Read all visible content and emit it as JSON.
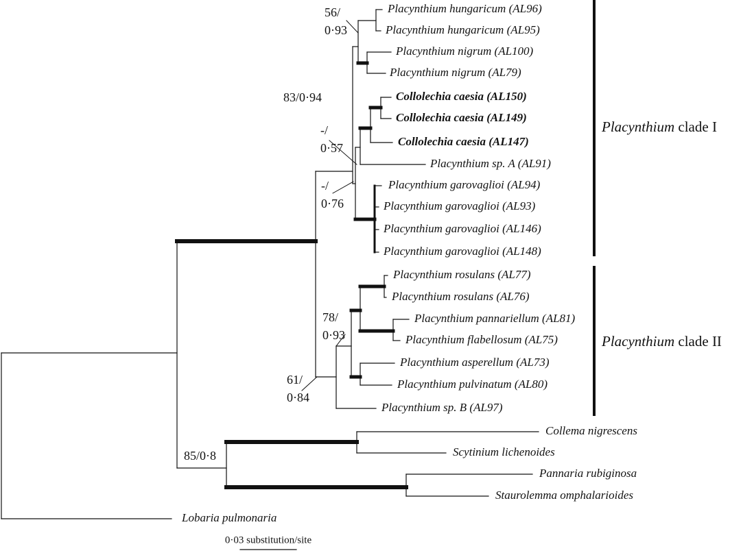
{
  "taxa": [
    {
      "label": "Placynthium hungaricum (AL96)"
    },
    {
      "label": "Placynthium hungaricum (AL95)"
    },
    {
      "label": "Placynthium nigrum (AL100)"
    },
    {
      "label": "Placynthium nigrum (AL79)"
    },
    {
      "label": "Collolechia caesia (AL150)",
      "bold": true
    },
    {
      "label": "Collolechia caesia (AL149)",
      "bold": true
    },
    {
      "label": "Collolechia caesia (AL147)",
      "bold": true
    },
    {
      "label": "Placynthium sp. A (AL91)"
    },
    {
      "label": "Placynthium garovaglioi (AL94)"
    },
    {
      "label": "Placynthium garovaglioi (AL93)"
    },
    {
      "label": "Placynthium garovaglioi (AL146)"
    },
    {
      "label": "Placynthium garovaglioi (AL148)"
    },
    {
      "label": "Placynthium rosulans (AL77)"
    },
    {
      "label": "Placynthium rosulans (AL76)"
    },
    {
      "label": "Placynthium pannariellum (AL81)"
    },
    {
      "label": "Placynthium flabellosum (AL75)"
    },
    {
      "label": "Placynthium asperellum (AL73)"
    },
    {
      "label": "Placynthium pulvinatum (AL80)"
    },
    {
      "label": "Placynthium sp. B (AL97)"
    },
    {
      "label": "Collema nigrescens"
    },
    {
      "label": "Scytinium lichenoides"
    },
    {
      "label": "Pannaria rubiginosa"
    },
    {
      "label": "Staurolemma omphalarioides"
    },
    {
      "label": "Lobaria pulmonaria"
    }
  ],
  "support": [
    [
      "56/",
      "0·93"
    ],
    [
      "83/0·94"
    ],
    [
      "-/",
      "0·57"
    ],
    [
      "-/",
      "0·76"
    ],
    [
      "78/",
      "0·93"
    ],
    [
      "61/",
      "0·84"
    ],
    [
      "85/0·8"
    ]
  ],
  "clades": [
    {
      "genus": "Placynthium",
      "name": "clade I"
    },
    {
      "genus": "Placynthium",
      "name": "clade II"
    }
  ],
  "scale_bar": "0·03 substitution/site"
}
